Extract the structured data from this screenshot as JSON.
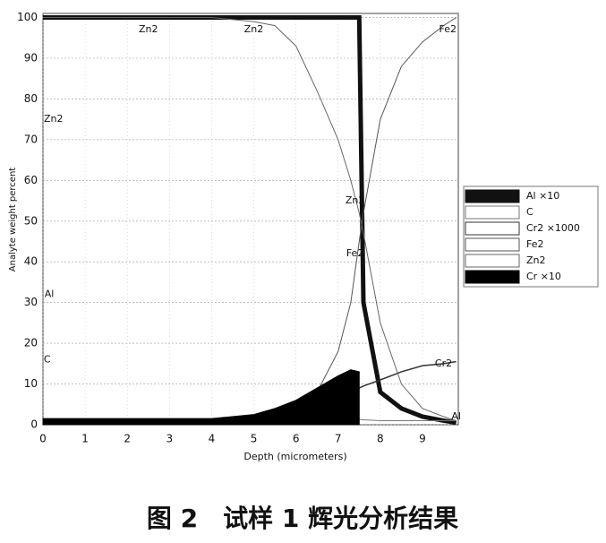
{
  "chart_data": {
    "type": "line",
    "x_label": "Depth (micrometers)",
    "y_label": "Analyte weight percent",
    "caption": "图 2　试样 1 辉光分析结果",
    "x": [
      0,
      1,
      2,
      3,
      4,
      5,
      5.5,
      6,
      6.5,
      7,
      7.3,
      7.5,
      7.6,
      8,
      8.5,
      9,
      9.5,
      9.8
    ],
    "series": [
      {
        "name": "Al ×10",
        "color": "#111111",
        "width": 5,
        "values": [
          100,
          100,
          100,
          100,
          100,
          100,
          100,
          100,
          100,
          100,
          100,
          100,
          30,
          8,
          4,
          2,
          1,
          0.5
        ]
      },
      {
        "name": "C",
        "color": "#777777",
        "width": 1,
        "values": [
          1,
          1,
          1,
          1,
          1,
          1,
          1,
          1,
          1,
          1.2,
          1.3,
          1.3,
          1.2,
          1,
          1,
          1,
          1,
          1
        ]
      },
      {
        "name": "Cr2 ×1000",
        "color": "#333333",
        "width": 1.5,
        "values": [
          null,
          null,
          null,
          null,
          null,
          null,
          null,
          null,
          null,
          null,
          null,
          9,
          9.5,
          11,
          13,
          14.5,
          15,
          15.5
        ]
      },
      {
        "name": "Fe2",
        "color": "#555555",
        "width": 1,
        "values": [
          0,
          0,
          0,
          0,
          0,
          0,
          1,
          3,
          8,
          18,
          30,
          45,
          52,
          75,
          88,
          94,
          98,
          100
        ]
      },
      {
        "name": "Zn2",
        "color": "#666666",
        "width": 1,
        "values": [
          100,
          100,
          100,
          100,
          100,
          99,
          98,
          93,
          82,
          70,
          60,
          52,
          47,
          25,
          10,
          4,
          2,
          1
        ]
      },
      {
        "name": "Cr ×10",
        "color": "#000000",
        "width": 1,
        "fill": true,
        "values": [
          1.5,
          1.5,
          1.5,
          1.5,
          1.5,
          2.5,
          4,
          6,
          9,
          12,
          13.5,
          13,
          null,
          null,
          null,
          null,
          null,
          null
        ]
      }
    ],
    "annotations": [
      {
        "text": "Zn2",
        "x": 2.5,
        "y": 97
      },
      {
        "text": "Zn2",
        "x": 5,
        "y": 97
      },
      {
        "text": "Fe2",
        "x": 9.6,
        "y": 97
      },
      {
        "text": "Zn2",
        "x": 0.25,
        "y": 75
      },
      {
        "text": "Zn2",
        "x": 7.4,
        "y": 55
      },
      {
        "text": "Fe2",
        "x": 7.4,
        "y": 42
      },
      {
        "text": "Al",
        "x": 0.15,
        "y": 32
      },
      {
        "text": "C",
        "x": 0.1,
        "y": 16
      },
      {
        "text": "Cr2",
        "x": 9.5,
        "y": 15
      },
      {
        "text": "Al",
        "x": 9.8,
        "y": 2
      }
    ],
    "xlim": [
      0,
      9.85
    ],
    "xticks": [
      0,
      1,
      2,
      3,
      4,
      5,
      6,
      7,
      8,
      9
    ],
    "ylim": [
      0,
      101
    ],
    "yticks": [
      0,
      10,
      20,
      30,
      40,
      50,
      60,
      70,
      80,
      90,
      100
    ],
    "grid": true,
    "legend": "right"
  }
}
